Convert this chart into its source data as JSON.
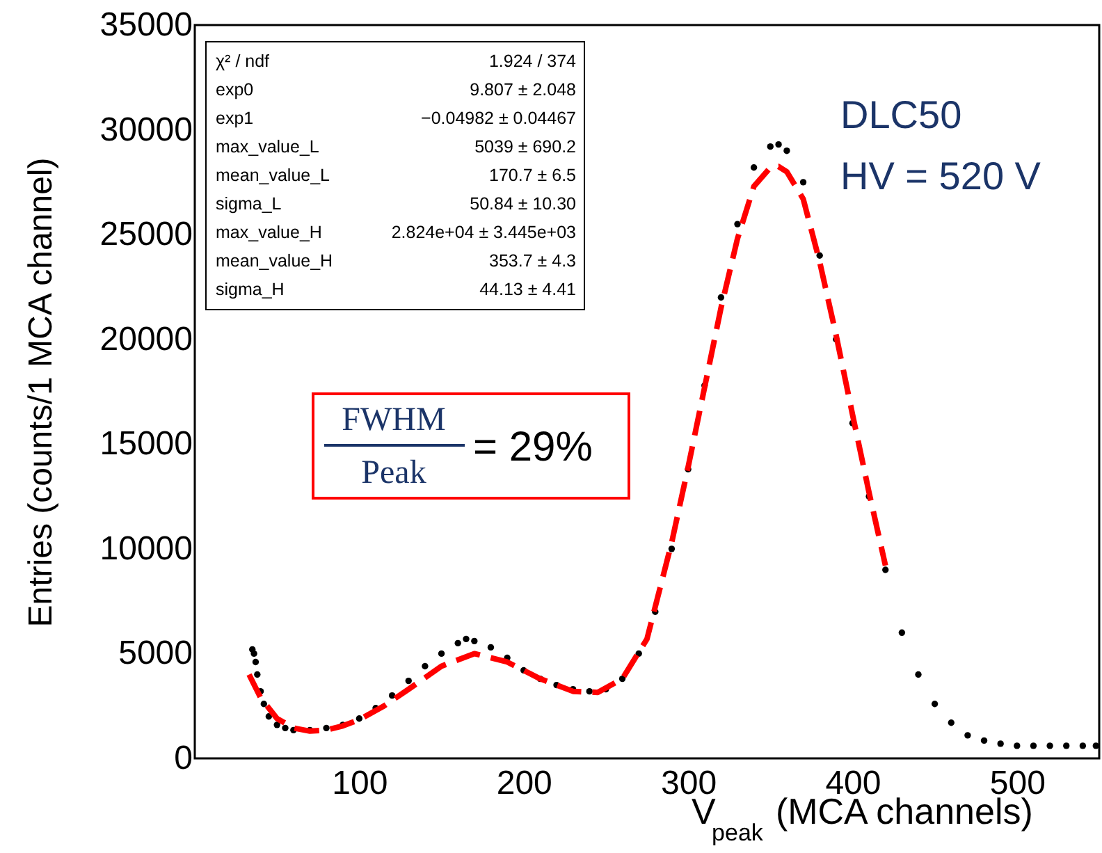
{
  "chart_data": {
    "type": "scatter",
    "xlabel": "V$_{peak}$ (MCA channels)",
    "ylabel": "Entries (counts/1 MCA channel)",
    "xlim": [
      0,
      550
    ],
    "xticks": [
      100,
      200,
      300,
      400,
      500
    ],
    "ylim": [
      0,
      35000
    ],
    "yticks": [
      0,
      5000,
      10000,
      15000,
      20000,
      25000,
      30000,
      35000
    ],
    "grid": false,
    "marker": "circle",
    "series": [
      {
        "color": "#000000",
        "x": [
          35,
          36,
          37,
          38,
          40,
          42,
          45,
          50,
          55,
          60,
          70,
          80,
          90,
          100,
          110,
          120,
          130,
          140,
          150,
          160,
          165,
          170,
          180,
          190,
          200,
          210,
          220,
          230,
          240,
          250,
          260,
          270,
          280,
          290,
          300,
          310,
          320,
          330,
          340,
          350,
          355,
          360,
          370,
          380,
          390,
          400,
          410,
          420,
          430,
          440,
          450,
          460,
          470,
          480,
          490,
          500,
          510,
          520,
          530,
          540,
          548
        ],
        "values": [
          5200,
          5000,
          4600,
          4000,
          3200,
          2600,
          2000,
          1600,
          1450,
          1350,
          1350,
          1450,
          1600,
          1900,
          2400,
          3000,
          3700,
          4400,
          5000,
          5500,
          5700,
          5600,
          5300,
          4800,
          4200,
          3800,
          3500,
          3300,
          3200,
          3300,
          3800,
          5000,
          7000,
          10000,
          13800,
          17800,
          22000,
          25500,
          28200,
          29200,
          29300,
          29000,
          27500,
          24000,
          20000,
          16000,
          12500,
          9000,
          6000,
          4000,
          2600,
          1700,
          1100,
          850,
          700,
          600,
          600,
          600,
          600,
          600,
          600
        ]
      },
      {
        "type": "line",
        "color": "#ff0000",
        "line_style": "dashed",
        "marker": "none",
        "x": [
          33,
          40,
          50,
          60,
          70,
          80,
          90,
          100,
          115,
          130,
          150,
          170,
          190,
          210,
          230,
          245,
          260,
          275,
          290,
          300,
          310,
          320,
          330,
          340,
          350,
          355,
          360,
          370,
          380,
          390,
          400,
          410,
          420
        ],
        "values": [
          4000,
          2900,
          1900,
          1450,
          1300,
          1350,
          1550,
          1850,
          2500,
          3300,
          4400,
          5000,
          4600,
          3800,
          3200,
          3150,
          3800,
          5700,
          10300,
          13900,
          17700,
          21500,
          24800,
          27300,
          28200,
          28250,
          28000,
          26700,
          23700,
          20200,
          16400,
          12700,
          9200
        ]
      }
    ],
    "annotations": [
      "DLC50",
      "HV = 520 V",
      "FWHM",
      "Peak",
      "= 29%",
      "χ² / ndf",
      "1.924 / 374",
      "exp0",
      "9.807 ± 2.048",
      "exp1",
      "−0.04982 ± 0.04467",
      "max_value_L",
      "5039 ± 690.2",
      "mean_value_L",
      "170.7 ± 6.5",
      "sigma_L",
      "50.84 ± 10.30",
      "max_value_H",
      "2.824e+04 ± 3.445e+03",
      "mean_value_H",
      "353.7 ± 4.3",
      "sigma_H",
      "44.13 ± 4.41"
    ]
  }
}
